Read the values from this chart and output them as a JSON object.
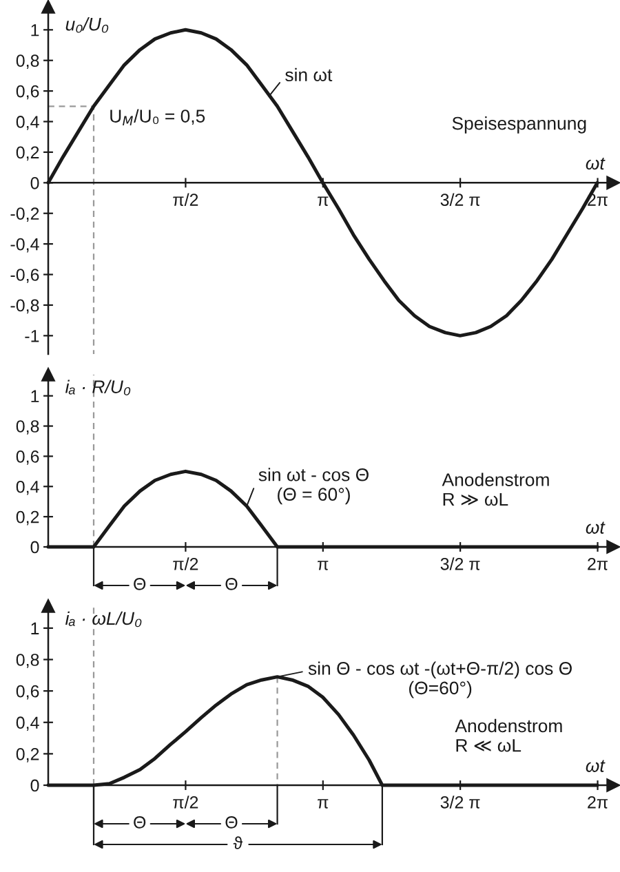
{
  "chart_data": [
    {
      "type": "line",
      "xlabel": "ωt",
      "ylabel": "u₀/U₀",
      "xlim": [
        0,
        6.46
      ],
      "xticks": [
        {
          "value": 1.571,
          "label": "π/2"
        },
        {
          "value": 3.142,
          "label": "π"
        },
        {
          "value": 4.712,
          "label": "3/2 π"
        },
        {
          "value": 6.283,
          "label": "2π"
        }
      ],
      "ylim": [
        -1.12,
        1.15
      ],
      "yticks": [
        -1,
        {
          "value": -0.8,
          "label": "-0,8"
        },
        {
          "value": -0.6,
          "label": "-0,6"
        },
        {
          "value": -0.4,
          "label": "-0,4"
        },
        {
          "value": -0.2,
          "label": "-0,2"
        },
        0,
        {
          "value": 0.2,
          "label": "0,2"
        },
        {
          "value": 0.4,
          "label": "0,4"
        },
        {
          "value": 0.6,
          "label": "0,6"
        },
        {
          "value": 0.8,
          "label": "0,8"
        },
        1
      ],
      "series": [
        {
          "color": "#1a1a1a",
          "x": [
            0,
            0.17,
            0.35,
            0.52,
            0.7,
            0.87,
            1.05,
            1.22,
            1.4,
            1.57,
            1.75,
            1.92,
            2.09,
            2.27,
            2.44,
            2.62,
            2.79,
            2.97,
            3.14,
            3.32,
            3.49,
            3.67,
            3.84,
            4.01,
            4.19,
            4.36,
            4.54,
            4.71,
            4.89,
            5.06,
            5.24,
            5.41,
            5.59,
            5.76,
            5.93,
            6.11,
            6.28
          ],
          "values": [
            0,
            0.17,
            0.34,
            0.5,
            0.64,
            0.77,
            0.87,
            0.94,
            0.98,
            1,
            0.98,
            0.94,
            0.87,
            0.77,
            0.64,
            0.5,
            0.34,
            0.17,
            0,
            -0.17,
            -0.34,
            -0.5,
            -0.64,
            -0.77,
            -0.87,
            -0.94,
            -0.98,
            -1,
            -0.98,
            -0.94,
            -0.87,
            -0.77,
            -0.64,
            -0.5,
            -0.34,
            -0.17,
            0
          ]
        },
        {
          "color": "#999999",
          "line_style": "dashed",
          "x": [
            0,
            0.52,
            0.52
          ],
          "values": [
            0.5,
            0.5,
            -1.12
          ]
        }
      ],
      "annotations": [
        {
          "text": "sin ωt",
          "x": 2.53,
          "y": 0.57
        },
        {
          "text": "U$_{M}$/U₀ = 0,5",
          "x": 0.52,
          "y": 0.5
        },
        "Speisespannung"
      ]
    },
    {
      "type": "line",
      "xlabel": "ωt",
      "ylabel": "iₐ · R/U₀",
      "xlim": [
        0,
        6.46
      ],
      "xticks": [
        {
          "value": 1.571,
          "label": "π/2"
        },
        {
          "value": 3.142,
          "label": "π"
        },
        {
          "value": 4.712,
          "label": "3/2 π"
        },
        {
          "value": 6.283,
          "label": "2π"
        }
      ],
      "ylim": [
        0,
        1.14
      ],
      "yticks": [
        0,
        {
          "value": 0.2,
          "label": "0,2"
        },
        {
          "value": 0.4,
          "label": "0,4"
        },
        {
          "value": 0.6,
          "label": "0,6"
        },
        {
          "value": 0.8,
          "label": "0,8"
        },
        1
      ],
      "series": [
        {
          "color": "#1a1a1a",
          "x": [
            0,
            0.52,
            0.7,
            0.87,
            1.05,
            1.22,
            1.4,
            1.57,
            1.75,
            1.92,
            2.09,
            2.27,
            2.44,
            2.62,
            6.28
          ],
          "values": [
            0,
            0,
            0.14,
            0.27,
            0.37,
            0.44,
            0.48,
            0.5,
            0.48,
            0.44,
            0.37,
            0.27,
            0.14,
            0,
            0
          ]
        }
      ],
      "ref_lines": [
        {
          "axis": "x",
          "value": 0.52,
          "line_style": "dashed",
          "color": "#999999"
        }
      ],
      "annotations": [
        {
          "text": "sin ωt - cos Θ\n(Θ = 60°)",
          "x": 2.27,
          "y": 0.27
        },
        "Anodenstrom\nR ≫ ωL",
        "Θ",
        "Θ"
      ]
    },
    {
      "type": "line",
      "xlabel": "ωt",
      "ylabel": "iₐ · ωL/U₀",
      "xlim": [
        0,
        6.46
      ],
      "xticks": [
        {
          "value": 1.571,
          "label": "π/2"
        },
        {
          "value": 3.142,
          "label": "π"
        },
        {
          "value": 4.712,
          "label": "3/2 π"
        },
        {
          "value": 6.283,
          "label": "2π"
        }
      ],
      "ylim": [
        0,
        1.14
      ],
      "yticks": [
        0,
        {
          "value": 0.2,
          "label": "0,2"
        },
        {
          "value": 0.4,
          "label": "0,4"
        },
        {
          "value": 0.6,
          "label": "0,6"
        },
        {
          "value": 0.8,
          "label": "0,8"
        },
        1
      ],
      "series": [
        {
          "color": "#1a1a1a",
          "x": [
            0,
            0.52,
            0.7,
            0.87,
            1.05,
            1.22,
            1.4,
            1.57,
            1.75,
            1.92,
            2.09,
            2.27,
            2.44,
            2.62,
            2.79,
            2.97,
            3.14,
            3.32,
            3.49,
            3.67,
            3.82,
            6.28
          ],
          "values": [
            0,
            0,
            0.01,
            0.05,
            0.1,
            0.17,
            0.26,
            0.34,
            0.43,
            0.51,
            0.58,
            0.64,
            0.67,
            0.69,
            0.67,
            0.63,
            0.56,
            0.45,
            0.32,
            0.16,
            0,
            0
          ]
        },
        {
          "color": "#999999",
          "line_style": "dashed",
          "x": [
            2.62,
            2.62
          ],
          "values": [
            0.69,
            0
          ]
        }
      ],
      "ref_lines": [
        {
          "axis": "x",
          "value": 0.52,
          "line_style": "dashed",
          "color": "#999999"
        }
      ],
      "annotations": [
        {
          "text": "sin Θ - cos ωt -(ωt+Θ-π/2) cos Θ\n(Θ=60°)",
          "x": 2.62,
          "y": 0.69
        },
        "Anodenstrom\nR ≪ ωL",
        "Θ",
        "Θ",
        "ϑ"
      ]
    }
  ]
}
